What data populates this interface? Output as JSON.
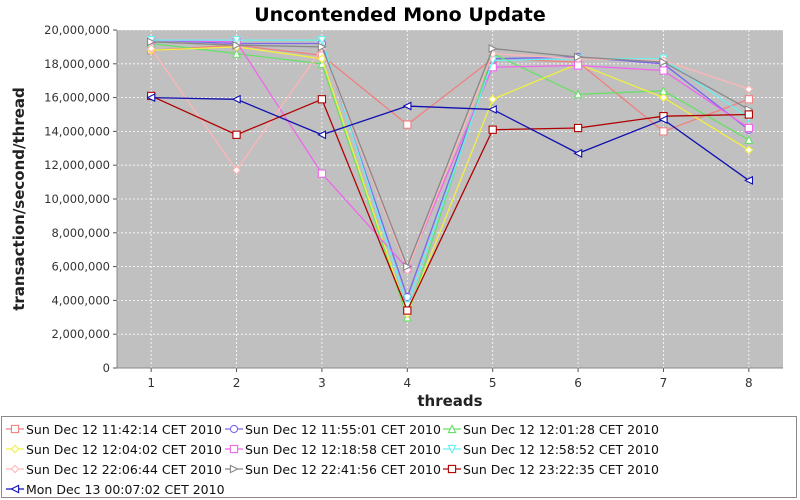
{
  "chart_data": {
    "type": "line",
    "title": "Uncontended Mono Update",
    "xlabel": "threads",
    "ylabel": "transaction/second/thread",
    "x": [
      1,
      2,
      3,
      4,
      5,
      6,
      7,
      8
    ],
    "xlim": [
      0.6,
      8.4
    ],
    "ylim": [
      0,
      20000000
    ],
    "yticks": [
      0,
      2000000,
      4000000,
      6000000,
      8000000,
      10000000,
      12000000,
      14000000,
      16000000,
      18000000,
      20000000
    ],
    "ytick_labels": [
      "0",
      "2,000,000",
      "4,000,000",
      "6,000,000",
      "8,000,000",
      "10,000,000",
      "12,000,000",
      "14,000,000",
      "16,000,000",
      "18,000,000",
      "20,000,000"
    ],
    "xtick_labels": [
      "1",
      "2",
      "3",
      "4",
      "5",
      "6",
      "7",
      "8"
    ],
    "grid": true,
    "legend_position": "bottom",
    "series": [
      {
        "name": "Sun Dec 12 11:42:14 CET 2010",
        "color": "#f08080",
        "marker": "square",
        "values": [
          18800000,
          19100000,
          18500000,
          14400000,
          18300000,
          18100000,
          14000000,
          15900000
        ]
      },
      {
        "name": "Sun Dec 12 11:55:01 CET 2010",
        "color": "#7b68ee",
        "marker": "circle",
        "values": [
          19400000,
          19200000,
          19200000,
          4200000,
          18300000,
          18400000,
          18000000,
          14100000
        ]
      },
      {
        "name": "Sun Dec 12 12:01:28 CET 2010",
        "color": "#66e066",
        "marker": "triangle-up",
        "values": [
          19200000,
          18600000,
          18000000,
          3000000,
          18600000,
          16200000,
          16400000,
          13500000
        ]
      },
      {
        "name": "Sun Dec 12 12:04:02 CET 2010",
        "color": "#f0f040",
        "marker": "diamond",
        "values": [
          18800000,
          19000000,
          18300000,
          3200000,
          15900000,
          18000000,
          16000000,
          12900000
        ]
      },
      {
        "name": "Sun Dec 12 12:18:58 CET 2010",
        "color": "#ee66ee",
        "marker": "square",
        "values": [
          19400000,
          19300000,
          11500000,
          5900000,
          17800000,
          17900000,
          17600000,
          14200000
        ]
      },
      {
        "name": "Sun Dec 12 12:58:52 CET 2010",
        "color": "#66f0f0",
        "marker": "triangle-down",
        "values": [
          19400000,
          19400000,
          19400000,
          3700000,
          18200000,
          18300000,
          18300000,
          14800000
        ]
      },
      {
        "name": "Sun Dec 12 22:06:44 CET 2010",
        "color": "#ffb6b6",
        "marker": "diamond",
        "values": [
          18900000,
          11700000,
          18900000,
          5800000,
          18600000,
          18300000,
          18200000,
          16500000
        ]
      },
      {
        "name": "Sun Dec 12 22:41:56 CET 2010",
        "color": "#888888",
        "marker": "triangle-right",
        "values": [
          19300000,
          19100000,
          19000000,
          6000000,
          18900000,
          18400000,
          18100000,
          15300000
        ]
      },
      {
        "name": "Sun Dec 12 23:22:35 CET 2010",
        "color": "#b00000",
        "marker": "square",
        "values": [
          16100000,
          13800000,
          15900000,
          3400000,
          14100000,
          14200000,
          14900000,
          15000000
        ]
      },
      {
        "name": "Mon Dec 13 00:07:02 CET 2010",
        "color": "#1010b0",
        "marker": "triangle-left",
        "values": [
          16000000,
          15900000,
          13800000,
          15500000,
          15300000,
          12700000,
          14700000,
          11100000
        ]
      }
    ]
  }
}
